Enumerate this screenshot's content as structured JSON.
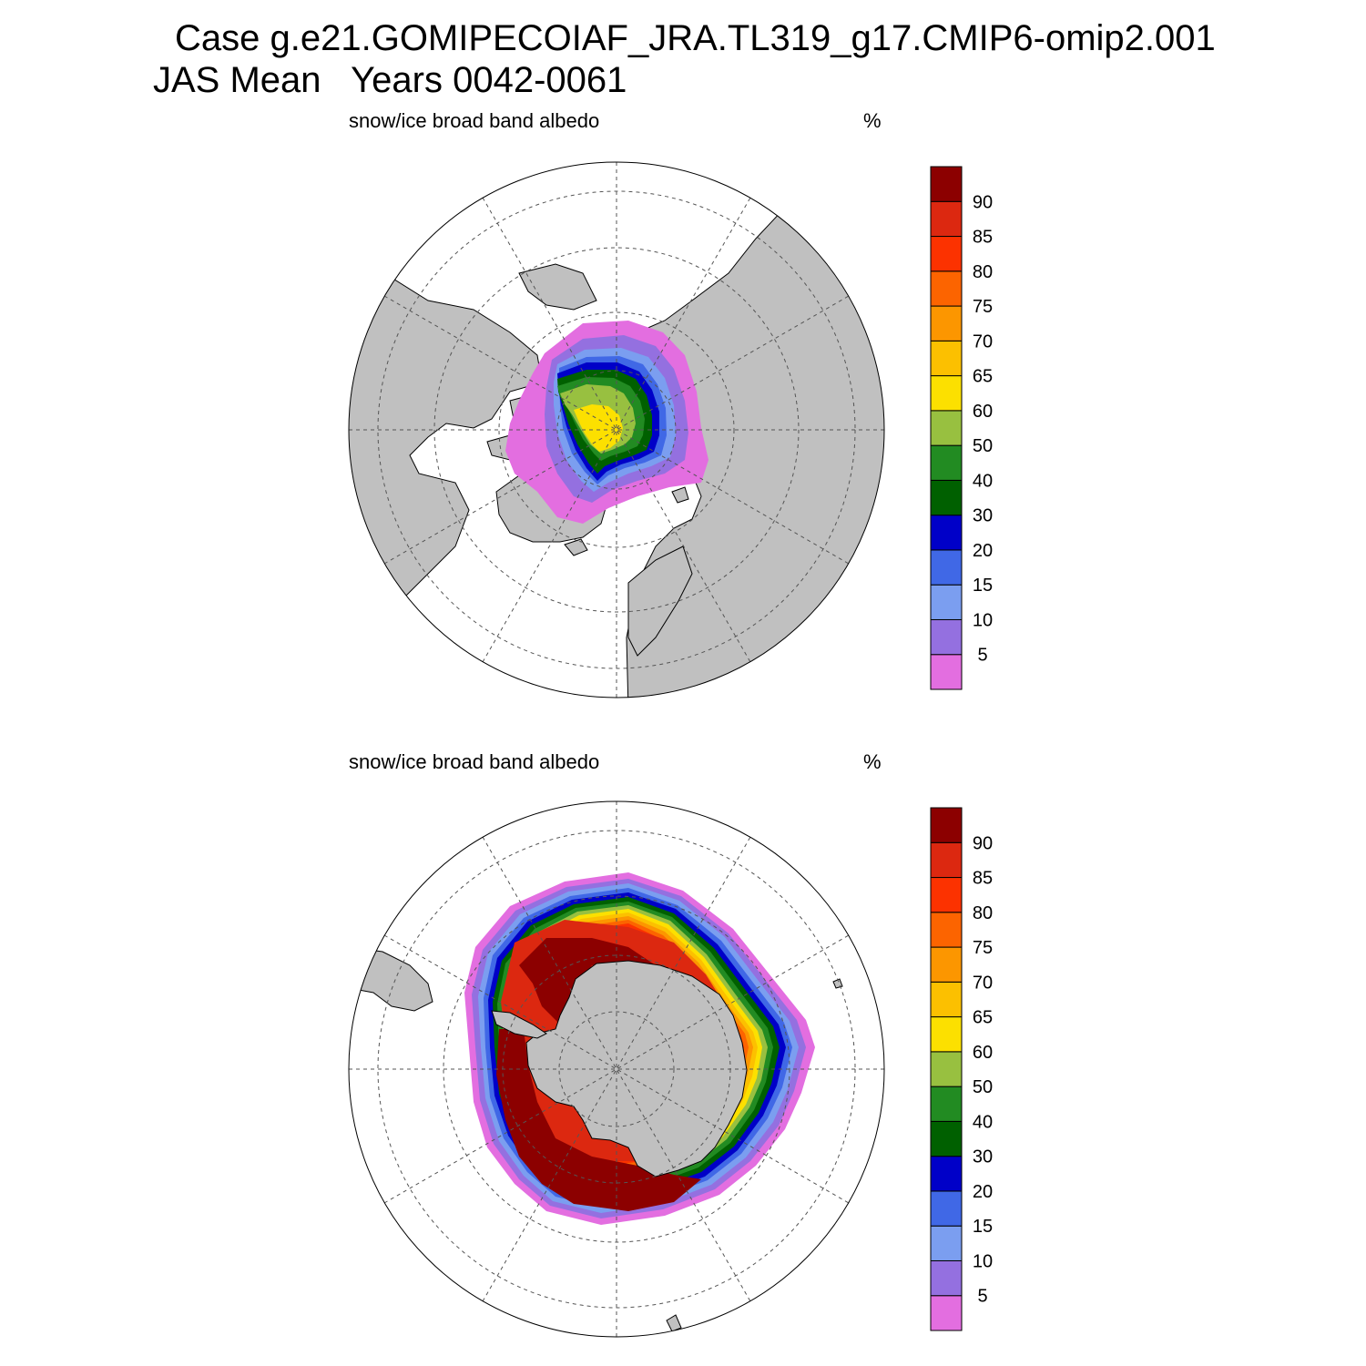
{
  "header": {
    "line1": "Case g.e21.GOMIPECOIAF_JRA.TL319_g17.CMIP6-omip2.001",
    "line2": "JAS Mean   Years 0042-0061"
  },
  "panels": [
    {
      "id": "north",
      "variable": "snow/ice broad band albedo",
      "units": "%",
      "hemisphere": "north"
    },
    {
      "id": "south",
      "variable": "snow/ice broad band albedo",
      "units": "%",
      "hemisphere": "south"
    }
  ],
  "colorbar": {
    "labels": [
      "5",
      "10",
      "15",
      "20",
      "30",
      "40",
      "50",
      "60",
      "65",
      "70",
      "75",
      "80",
      "85",
      "90"
    ],
    "colors": [
      "#e36ee0",
      "#9470e0",
      "#7b9ef0",
      "#4068e6",
      "#0000c8",
      "#006000",
      "#228b22",
      "#98c040",
      "#fce000",
      "#fcc000",
      "#fc9600",
      "#fc6400",
      "#fc3200",
      "#dc2810",
      "#8c0000"
    ]
  },
  "map_colors": {
    "land": "#c0c0c0",
    "ocean": "#ffffff",
    "grid": "#555555"
  }
}
